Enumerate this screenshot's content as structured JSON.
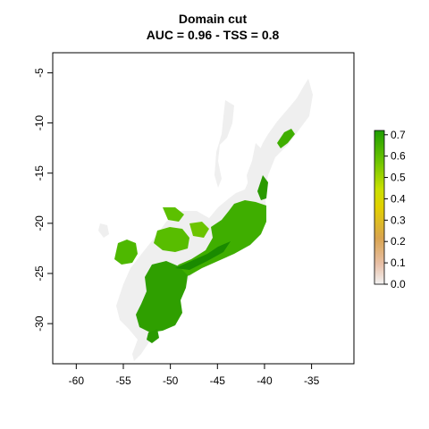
{
  "map": {
    "title_line1": "Domain cut",
    "title_line2": "AUC = 0.96 - TSS = 0.8",
    "x_ticks": [
      "-60",
      "-55",
      "-50",
      "-45",
      "-40",
      "-35"
    ],
    "x_tick_values": [
      -60,
      -55,
      -50,
      -45,
      -40,
      -35
    ],
    "y_ticks": [
      "-5",
      "-10",
      "-15",
      "-20",
      "-25",
      "-30"
    ],
    "y_tick_values": [
      -5,
      -10,
      -15,
      -20,
      -25,
      -30
    ],
    "xlim": [
      -62.5,
      -30.5
    ],
    "ylim": [
      -34,
      -3
    ],
    "background_color": "#efefef",
    "suitability_high_color": "#1a8a00",
    "suitability_mid_color": "#5cc000"
  },
  "legend": {
    "labels": [
      "0.7",
      "0.6",
      "0.5",
      "0.4",
      "0.3",
      "0.2",
      "0.1",
      "0.0"
    ],
    "values": [
      0.7,
      0.6,
      0.5,
      0.4,
      0.3,
      0.2,
      0.1,
      0.0
    ],
    "range": [
      0.0,
      0.72
    ],
    "colors": [
      "#f2f2f2",
      "#e8c0a8",
      "#d9a450",
      "#e2d000",
      "#c9e000",
      "#6cc400",
      "#1f9e00"
    ]
  }
}
